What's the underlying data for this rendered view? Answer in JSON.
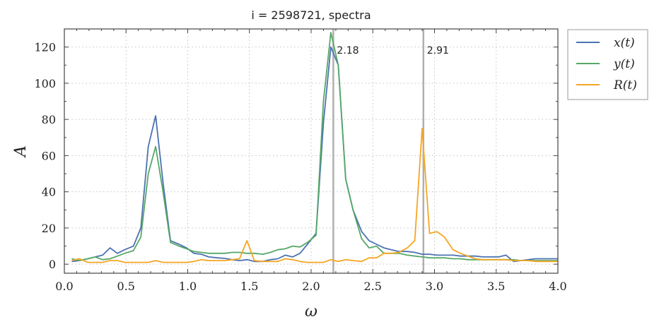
{
  "chart_data": {
    "type": "line",
    "title": "i = 2598721, spectra",
    "xlabel": "ω",
    "ylabel": "A",
    "xlim": [
      0.0,
      4.0
    ],
    "ylim": [
      -5,
      130
    ],
    "xticks": [
      "0.0",
      "0.5",
      "1.0",
      "1.5",
      "2.0",
      "2.5",
      "3.0",
      "3.5",
      "4.0"
    ],
    "yticks": [
      "0",
      "20",
      "40",
      "60",
      "80",
      "100",
      "120"
    ],
    "grid": true,
    "legend_position": "outside-top-right",
    "vlines": [
      {
        "x": 2.18,
        "label": "2.18",
        "color": "#b0b0b0"
      },
      {
        "x": 2.91,
        "label": "2.91",
        "color": "#b0b0b0"
      }
    ],
    "series": [
      {
        "name": "x(t)",
        "color": "#4c72b0",
        "points": [
          [
            0.06,
            1.5
          ],
          [
            0.12,
            2.0
          ],
          [
            0.19,
            3.0
          ],
          [
            0.25,
            4.0
          ],
          [
            0.31,
            5.0
          ],
          [
            0.37,
            9.0
          ],
          [
            0.43,
            6.0
          ],
          [
            0.49,
            8.0
          ],
          [
            0.56,
            10.0
          ],
          [
            0.62,
            20.0
          ],
          [
            0.68,
            65.0
          ],
          [
            0.74,
            82.0
          ],
          [
            0.8,
            45.0
          ],
          [
            0.86,
            13.0
          ],
          [
            0.93,
            11.0
          ],
          [
            0.99,
            9.0
          ],
          [
            1.05,
            6.0
          ],
          [
            1.11,
            5.5
          ],
          [
            1.17,
            4.0
          ],
          [
            1.24,
            3.5
          ],
          [
            1.3,
            3.2
          ],
          [
            1.36,
            2.5
          ],
          [
            1.42,
            2.0
          ],
          [
            1.48,
            2.5
          ],
          [
            1.54,
            1.5
          ],
          [
            1.61,
            1.5
          ],
          [
            1.67,
            2.5
          ],
          [
            1.73,
            3.0
          ],
          [
            1.79,
            5.0
          ],
          [
            1.85,
            4.0
          ],
          [
            1.91,
            6.0
          ],
          [
            1.97,
            11.0
          ],
          [
            2.04,
            17.0
          ],
          [
            2.1,
            78.0
          ],
          [
            2.16,
            120.0
          ],
          [
            2.22,
            110.0
          ],
          [
            2.28,
            47.0
          ],
          [
            2.34,
            30.0
          ],
          [
            2.41,
            18.0
          ],
          [
            2.47,
            13.0
          ],
          [
            2.53,
            11.0
          ],
          [
            2.59,
            9.0
          ],
          [
            2.65,
            8.0
          ],
          [
            2.71,
            7.0
          ],
          [
            2.78,
            7.0
          ],
          [
            2.84,
            6.5
          ],
          [
            2.9,
            5.5
          ],
          [
            2.96,
            5.5
          ],
          [
            3.02,
            5.0
          ],
          [
            3.08,
            5.0
          ],
          [
            3.15,
            5.0
          ],
          [
            3.21,
            4.5
          ],
          [
            3.27,
            4.5
          ],
          [
            3.33,
            4.5
          ],
          [
            3.39,
            4.0
          ],
          [
            3.45,
            4.0
          ],
          [
            3.52,
            4.0
          ],
          [
            3.58,
            5.0
          ],
          [
            3.64,
            1.5
          ],
          [
            3.7,
            2.0
          ],
          [
            3.76,
            2.5
          ],
          [
            3.82,
            3.0
          ],
          [
            3.89,
            3.0
          ],
          [
            3.95,
            3.0
          ],
          [
            4.0,
            3.0
          ]
        ]
      },
      {
        "name": "y(t)",
        "color": "#55a868",
        "points": [
          [
            0.06,
            3.0
          ],
          [
            0.12,
            2.0
          ],
          [
            0.19,
            3.0
          ],
          [
            0.25,
            4.0
          ],
          [
            0.31,
            2.5
          ],
          [
            0.37,
            3.0
          ],
          [
            0.43,
            4.5
          ],
          [
            0.49,
            6.0
          ],
          [
            0.56,
            7.5
          ],
          [
            0.62,
            15.0
          ],
          [
            0.68,
            50.0
          ],
          [
            0.74,
            65.0
          ],
          [
            0.8,
            40.0
          ],
          [
            0.86,
            12.0
          ],
          [
            0.93,
            10.0
          ],
          [
            0.99,
            8.5
          ],
          [
            1.05,
            7.0
          ],
          [
            1.11,
            6.5
          ],
          [
            1.17,
            6.0
          ],
          [
            1.24,
            6.0
          ],
          [
            1.3,
            6.0
          ],
          [
            1.36,
            6.5
          ],
          [
            1.42,
            6.5
          ],
          [
            1.48,
            6.0
          ],
          [
            1.54,
            6.0
          ],
          [
            1.61,
            5.5
          ],
          [
            1.67,
            6.5
          ],
          [
            1.73,
            8.0
          ],
          [
            1.79,
            8.5
          ],
          [
            1.85,
            10.0
          ],
          [
            1.91,
            9.5
          ],
          [
            1.97,
            12.0
          ],
          [
            2.04,
            16.0
          ],
          [
            2.1,
            90.0
          ],
          [
            2.16,
            128.0
          ],
          [
            2.22,
            110.0
          ],
          [
            2.28,
            47.0
          ],
          [
            2.34,
            30.0
          ],
          [
            2.41,
            14.0
          ],
          [
            2.47,
            9.0
          ],
          [
            2.53,
            10.0
          ],
          [
            2.59,
            6.0
          ],
          [
            2.65,
            6.0
          ],
          [
            2.71,
            6.0
          ],
          [
            2.78,
            5.0
          ],
          [
            2.84,
            4.5
          ],
          [
            2.9,
            4.0
          ],
          [
            2.96,
            3.5
          ],
          [
            3.02,
            3.5
          ],
          [
            3.08,
            3.5
          ],
          [
            3.15,
            3.0
          ],
          [
            3.21,
            3.0
          ],
          [
            3.27,
            2.5
          ],
          [
            3.33,
            2.5
          ],
          [
            3.39,
            2.5
          ],
          [
            3.45,
            2.5
          ],
          [
            3.52,
            2.5
          ],
          [
            3.58,
            2.5
          ],
          [
            3.64,
            2.5
          ],
          [
            3.7,
            2.0
          ],
          [
            3.76,
            2.0
          ],
          [
            3.82,
            2.0
          ],
          [
            3.89,
            2.0
          ],
          [
            3.95,
            2.0
          ],
          [
            4.0,
            2.0
          ]
        ]
      },
      {
        "name": "R(t)",
        "color": "#f5a623",
        "points": [
          [
            0.06,
            2.0
          ],
          [
            0.12,
            3.0
          ],
          [
            0.19,
            1.0
          ],
          [
            0.25,
            1.0
          ],
          [
            0.31,
            1.0
          ],
          [
            0.37,
            2.0
          ],
          [
            0.43,
            2.0
          ],
          [
            0.49,
            1.0
          ],
          [
            0.56,
            1.0
          ],
          [
            0.62,
            1.0
          ],
          [
            0.68,
            1.0
          ],
          [
            0.74,
            2.0
          ],
          [
            0.8,
            1.0
          ],
          [
            0.86,
            1.0
          ],
          [
            0.93,
            1.0
          ],
          [
            0.99,
            1.0
          ],
          [
            1.05,
            1.5
          ],
          [
            1.11,
            2.5
          ],
          [
            1.17,
            2.0
          ],
          [
            1.24,
            2.0
          ],
          [
            1.3,
            2.0
          ],
          [
            1.36,
            2.5
          ],
          [
            1.42,
            3.0
          ],
          [
            1.48,
            13.0
          ],
          [
            1.54,
            2.0
          ],
          [
            1.61,
            1.5
          ],
          [
            1.67,
            1.5
          ],
          [
            1.73,
            1.5
          ],
          [
            1.79,
            3.0
          ],
          [
            1.85,
            2.5
          ],
          [
            1.91,
            1.5
          ],
          [
            1.97,
            1.0
          ],
          [
            2.04,
            1.0
          ],
          [
            2.1,
            1.0
          ],
          [
            2.16,
            2.5
          ],
          [
            2.22,
            1.5
          ],
          [
            2.28,
            2.5
          ],
          [
            2.34,
            2.0
          ],
          [
            2.41,
            1.5
          ],
          [
            2.47,
            3.5
          ],
          [
            2.53,
            3.5
          ],
          [
            2.59,
            6.0
          ],
          [
            2.65,
            6.0
          ],
          [
            2.71,
            6.5
          ],
          [
            2.78,
            9.0
          ],
          [
            2.84,
            13.0
          ],
          [
            2.9,
            75.0
          ],
          [
            2.96,
            17.0
          ],
          [
            3.02,
            18.0
          ],
          [
            3.08,
            15.0
          ],
          [
            3.15,
            8.0
          ],
          [
            3.21,
            6.0
          ],
          [
            3.27,
            4.5
          ],
          [
            3.33,
            3.0
          ],
          [
            3.39,
            2.5
          ],
          [
            3.45,
            2.5
          ],
          [
            3.52,
            2.5
          ],
          [
            3.58,
            2.5
          ],
          [
            3.64,
            2.0
          ],
          [
            3.7,
            2.0
          ],
          [
            3.76,
            2.0
          ],
          [
            3.82,
            1.5
          ],
          [
            3.89,
            1.5
          ],
          [
            3.95,
            1.5
          ],
          [
            4.0,
            1.5
          ]
        ]
      }
    ]
  }
}
